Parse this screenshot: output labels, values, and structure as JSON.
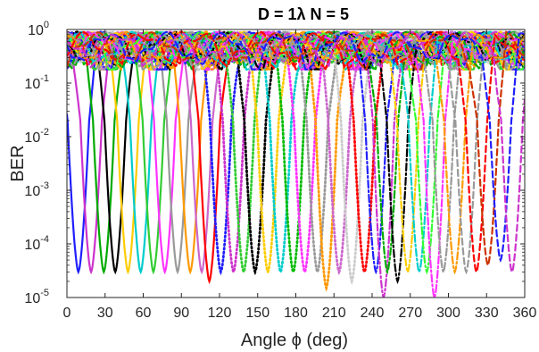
{
  "chart_data": {
    "type": "line",
    "title": "D = 1λ      N = 5",
    "xlabel": "Angle ϕ (deg)",
    "ylabel": "BER",
    "xlim": [
      0,
      360
    ],
    "ylim": [
      1e-05,
      1
    ],
    "yscale": "log",
    "grid": false,
    "legend": "none",
    "x_ticks": [
      "0",
      "30",
      "60",
      "90",
      "120",
      "150",
      "180",
      "210",
      "240",
      "270",
      "300",
      "330",
      "360"
    ],
    "y_ticks": [
      "10-5",
      "10-4",
      "10-3",
      "10-2",
      "10-1",
      "100"
    ],
    "series_note_values": "each curve: BER vs angle; deep null at x = null_deg with BER = min_ber, rising to ~0.3-0.9 elsewhere",
    "series": [
      {
        "null_deg": 9,
        "min_ber": 3e-05,
        "color": "#1f1fff",
        "style": "solid"
      },
      {
        "null_deg": 19,
        "min_ber": 3e-05,
        "color": "#cc33cc",
        "style": "solid"
      },
      {
        "null_deg": 29,
        "min_ber": 3e-05,
        "color": "#00aa00",
        "style": "solid"
      },
      {
        "null_deg": 38,
        "min_ber": 3e-05,
        "color": "#000000",
        "style": "solid"
      },
      {
        "null_deg": 48,
        "min_ber": 3e-05,
        "color": "#ffcc00",
        "style": "solid"
      },
      {
        "null_deg": 58,
        "min_ber": 3e-05,
        "color": "#00cccc",
        "style": "solid"
      },
      {
        "null_deg": 68,
        "min_ber": 3e-05,
        "color": "#33cc33",
        "style": "solid"
      },
      {
        "null_deg": 77,
        "min_ber": 3e-05,
        "color": "#ff33ff",
        "style": "solid"
      },
      {
        "null_deg": 87,
        "min_ber": 3e-05,
        "color": "#999999",
        "style": "solid"
      },
      {
        "null_deg": 97,
        "min_ber": 3e-05,
        "color": "#ff9900",
        "style": "solid"
      },
      {
        "null_deg": 106,
        "min_ber": 3e-05,
        "color": "#cc66cc",
        "style": "solid"
      },
      {
        "null_deg": 112,
        "min_ber": 2e-05,
        "color": "#ff0000",
        "style": "solid"
      },
      {
        "null_deg": 121,
        "min_ber": 3e-05,
        "color": "#1f1fff",
        "style": "dotted"
      },
      {
        "null_deg": 131,
        "min_ber": 3e-05,
        "color": "#cc33cc",
        "style": "dotted"
      },
      {
        "null_deg": 139,
        "min_ber": 3e-05,
        "color": "#33cc33",
        "style": "dotted"
      },
      {
        "null_deg": 148,
        "min_ber": 3e-05,
        "color": "#000000",
        "style": "dotted"
      },
      {
        "null_deg": 158,
        "min_ber": 3e-05,
        "color": "#ffcc00",
        "style": "dotted"
      },
      {
        "null_deg": 168,
        "min_ber": 3e-05,
        "color": "#00cccc",
        "style": "dotted"
      },
      {
        "null_deg": 178,
        "min_ber": 3e-05,
        "color": "#00bb00",
        "style": "dotted"
      },
      {
        "null_deg": 187,
        "min_ber": 3e-05,
        "color": "#ff33ff",
        "style": "dotted"
      },
      {
        "null_deg": 197,
        "min_ber": 3e-05,
        "color": "#999999",
        "style": "dotted"
      },
      {
        "null_deg": 204,
        "min_ber": 1.5e-05,
        "color": "#ff9900",
        "style": "dotted"
      },
      {
        "null_deg": 214,
        "min_ber": 3e-05,
        "color": "#cc66cc",
        "style": "dotted"
      },
      {
        "null_deg": 224,
        "min_ber": 2e-05,
        "color": "#cccccc",
        "style": "dotted"
      },
      {
        "null_deg": 234,
        "min_ber": 3e-05,
        "color": "#ff0000",
        "style": "dotted"
      },
      {
        "null_deg": 243,
        "min_ber": 3e-05,
        "color": "#1f1fff",
        "style": "dashdot"
      },
      {
        "null_deg": 249,
        "min_ber": 1e-05,
        "color": "#cc33cc",
        "style": "dashdot"
      },
      {
        "null_deg": 252,
        "min_ber": 3e-05,
        "color": "#00aa00",
        "style": "dashdot"
      },
      {
        "null_deg": 260,
        "min_ber": 2e-05,
        "color": "#000000",
        "style": "dashdot"
      },
      {
        "null_deg": 268,
        "min_ber": 3e-05,
        "color": "#ffcc00",
        "style": "dashdot"
      },
      {
        "null_deg": 277,
        "min_ber": 3e-05,
        "color": "#00cccc",
        "style": "dashdot"
      },
      {
        "null_deg": 283,
        "min_ber": 3e-05,
        "color": "#33ff33",
        "style": "dashdot"
      },
      {
        "null_deg": 289,
        "min_ber": 1e-05,
        "color": "#ff33ff",
        "style": "dashdot"
      },
      {
        "null_deg": 296,
        "min_ber": 3e-05,
        "color": "#999999",
        "style": "dashdot"
      },
      {
        "null_deg": 305,
        "min_ber": 3e-05,
        "color": "#ff9900",
        "style": "dashdot"
      },
      {
        "null_deg": 314,
        "min_ber": 3e-05,
        "color": "#999999",
        "style": "dashed"
      },
      {
        "null_deg": 322,
        "min_ber": 3e-05,
        "color": "#ff0000",
        "style": "dashed"
      },
      {
        "null_deg": 331,
        "min_ber": 4e-05,
        "color": "#cc3300",
        "style": "dashed"
      },
      {
        "null_deg": 341,
        "min_ber": 5e-05,
        "color": "#1f1fff",
        "style": "dashed"
      },
      {
        "null_deg": 350,
        "min_ber": 3e-05,
        "color": "#cc33cc",
        "style": "dashed"
      }
    ]
  }
}
